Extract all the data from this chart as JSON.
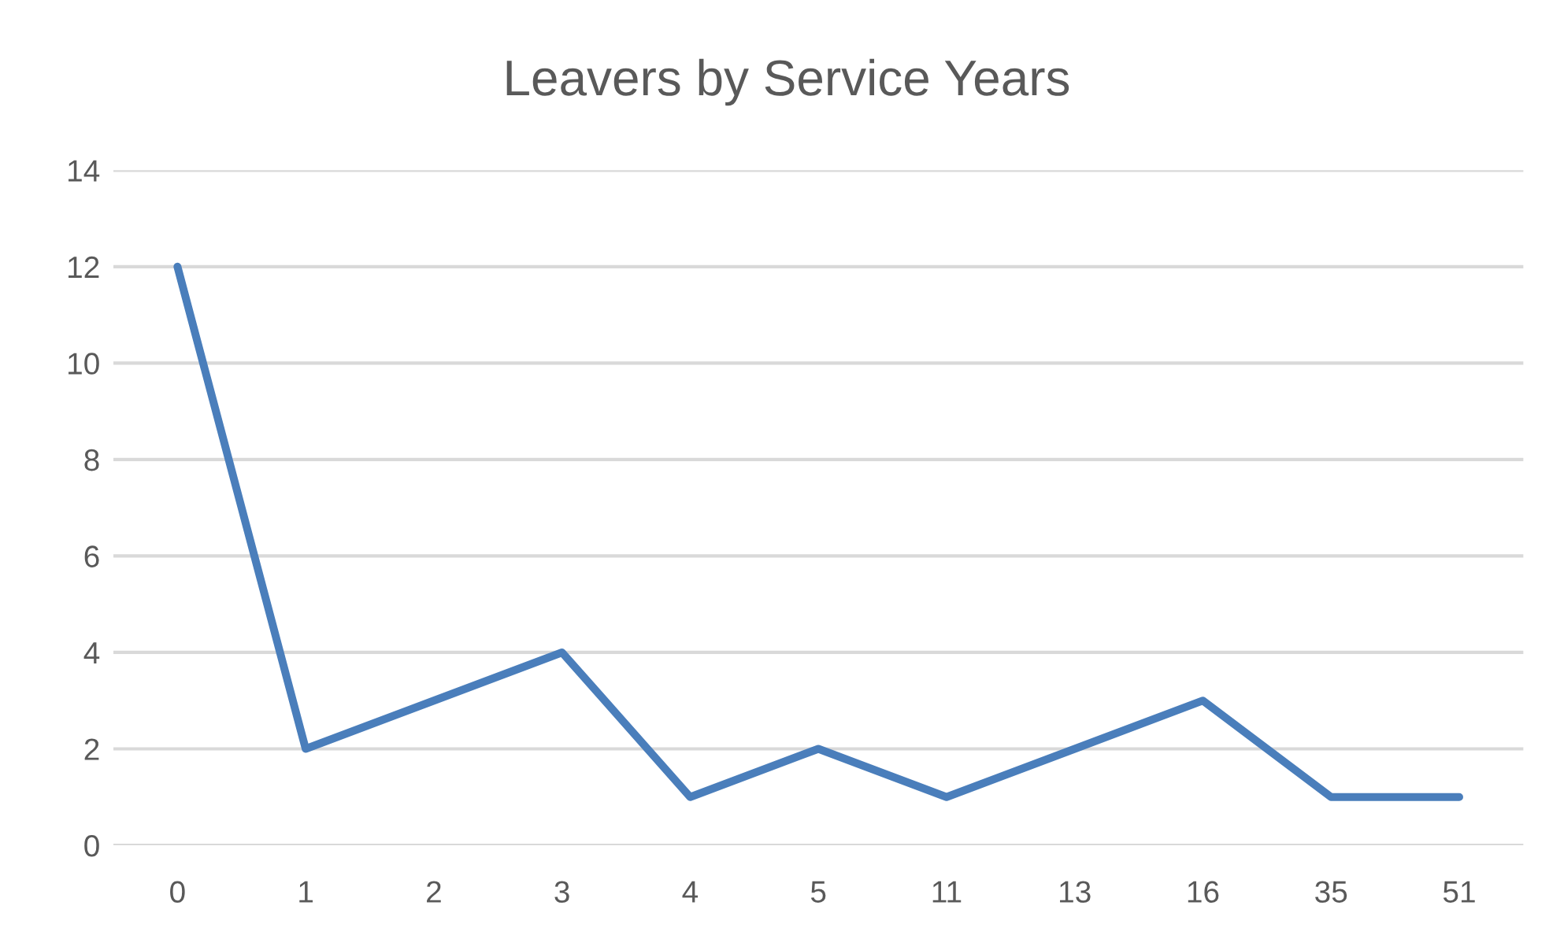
{
  "chart_data": {
    "type": "line",
    "title": "Leavers by Service Years",
    "categories": [
      "0",
      "1",
      "2",
      "3",
      "4",
      "5",
      "11",
      "13",
      "16",
      "35",
      "51"
    ],
    "series": [
      {
        "color": "#4a7ebb",
        "values": [
          12,
          2,
          3,
          4,
          1,
          2,
          1,
          2,
          3,
          1,
          1
        ]
      }
    ],
    "ylim": [
      0,
      14
    ],
    "yticks": [
      0,
      2,
      4,
      6,
      8,
      10,
      12,
      14
    ],
    "grid": "y",
    "line_style": "solid"
  }
}
